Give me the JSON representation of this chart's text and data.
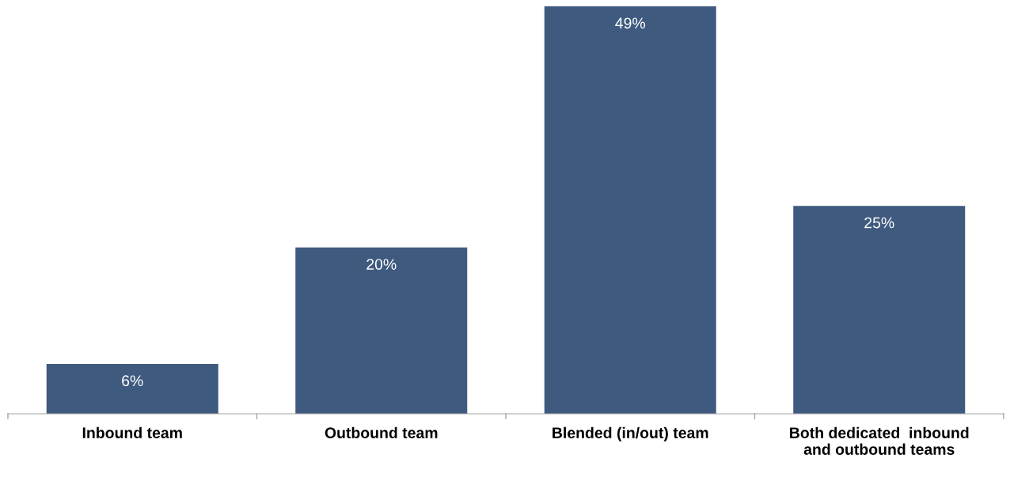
{
  "chart_data": {
    "type": "bar",
    "categories": [
      "Inbound team",
      "Outbound team",
      "Blended (in/out) team",
      "Both dedicated  inbound\nand outbound teams"
    ],
    "values": [
      6,
      20,
      49,
      25
    ],
    "value_labels": [
      "6%",
      "20%",
      "49%",
      "25%"
    ],
    "color": "#3f5a7f",
    "grid": false,
    "legend": false
  }
}
